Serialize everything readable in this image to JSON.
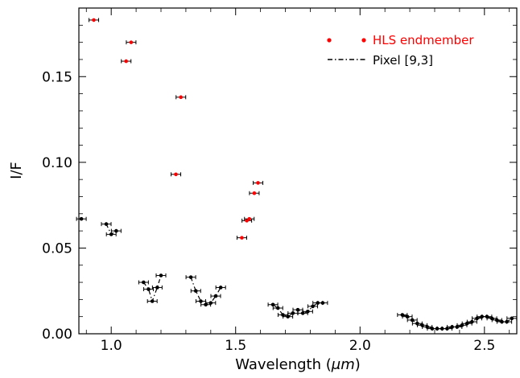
{
  "chart_data": {
    "type": "scatter",
    "xlabel_main": "Wavelength (",
    "xlabel_unit": "μm",
    "xlabel_end": ")",
    "ylabel": "I/F",
    "xlim": [
      0.87,
      2.63
    ],
    "ylim": [
      0.0,
      0.19
    ],
    "x_ticks": [
      "1.0",
      "1.5",
      "2.0",
      "2.5"
    ],
    "x_tick_values": [
      1.0,
      1.5,
      2.0,
      2.5
    ],
    "y_ticks": [
      "0.00",
      "0.05",
      "0.10",
      "0.15"
    ],
    "y_tick_values": [
      0.0,
      0.05,
      0.1,
      0.15
    ],
    "grid": false,
    "legend_position": "top-right",
    "series": [
      {
        "name": "HLS endmember",
        "color": "#ff0000",
        "style": "markers",
        "x": [
          0.93,
          1.06,
          1.08,
          1.26,
          1.28,
          1.525,
          1.545,
          1.555,
          1.575,
          1.59
        ],
        "y": [
          0.183,
          0.159,
          0.17,
          0.093,
          0.138,
          0.056,
          0.066,
          0.067,
          0.082,
          0.088
        ]
      },
      {
        "name": "Pixel [9,3]",
        "color": "#000000",
        "style": "dash-dot",
        "segments": [
          {
            "x": [
              0.88
            ],
            "y": [
              0.067
            ]
          },
          {
            "x": [
              0.98,
              1.0,
              1.02
            ],
            "y": [
              0.064,
              0.058,
              0.06
            ]
          },
          {
            "x": [
              1.13,
              1.15,
              1.165,
              1.185,
              1.2
            ],
            "y": [
              0.03,
              0.026,
              0.019,
              0.027,
              0.034
            ]
          },
          {
            "x": [
              1.32,
              1.34,
              1.36,
              1.38,
              1.4,
              1.42,
              1.44
            ],
            "y": [
              0.033,
              0.025,
              0.019,
              0.017,
              0.018,
              0.022,
              0.027
            ]
          },
          {
            "x": [
              1.65,
              1.67,
              1.69,
              1.71,
              1.73,
              1.75,
              1.77,
              1.79,
              1.81,
              1.83,
              1.85
            ],
            "y": [
              0.017,
              0.015,
              0.011,
              0.01,
              0.012,
              0.014,
              0.012,
              0.013,
              0.016,
              0.018,
              0.018
            ]
          },
          {
            "x": [
              2.17,
              2.19,
              2.21,
              2.23,
              2.25,
              2.27,
              2.29,
              2.31,
              2.33,
              2.35,
              2.37,
              2.39,
              2.41,
              2.43,
              2.45,
              2.47,
              2.49,
              2.51,
              2.53,
              2.55,
              2.57,
              2.59,
              2.61
            ],
            "y": [
              0.011,
              0.01,
              0.008,
              0.006,
              0.005,
              0.004,
              0.003,
              0.003,
              0.003,
              0.003,
              0.004,
              0.004,
              0.005,
              0.006,
              0.007,
              0.009,
              0.01,
              0.01,
              0.009,
              0.008,
              0.007,
              0.007,
              0.009
            ]
          }
        ]
      }
    ]
  }
}
